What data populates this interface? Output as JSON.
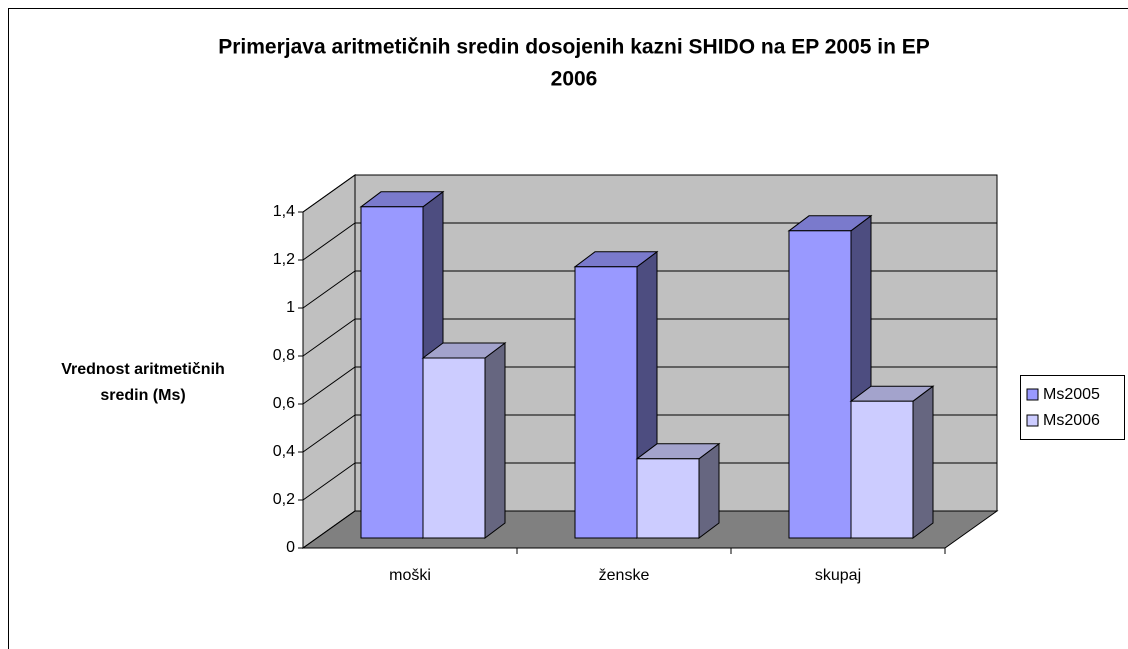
{
  "chart_data": {
    "type": "bar3d",
    "title": "Primerjava aritmetičnih sredin dosojenih kazni SHIDO na EP 2005 in EP",
    "title_line2": "2006",
    "y_label": "Vrednost aritmetičnih",
    "y_label_line2": "sredin (Ms)",
    "categories": [
      "moški",
      "ženske",
      "skupaj"
    ],
    "series": [
      {
        "name": "Ms2005",
        "color": "#9999ff",
        "values": [
          1.38,
          1.13,
          1.28
        ]
      },
      {
        "name": "Ms2006",
        "color": "#ccccff",
        "values": [
          0.75,
          0.33,
          0.57
        ]
      }
    ],
    "ylim": [
      0,
      1.4
    ],
    "yticks": [
      0,
      {
        "value": 0.2,
        "label": "0,2"
      },
      {
        "value": 0.4,
        "label": "0,4"
      },
      {
        "value": 0.6,
        "label": "0,6"
      },
      {
        "value": 0.8,
        "label": "0,8"
      },
      {
        "value": 1,
        "label": "1"
      },
      {
        "value": 1.2,
        "label": "1,2"
      },
      {
        "value": 1.4,
        "label": "1,4"
      }
    ],
    "grid": true,
    "legend": "right"
  }
}
